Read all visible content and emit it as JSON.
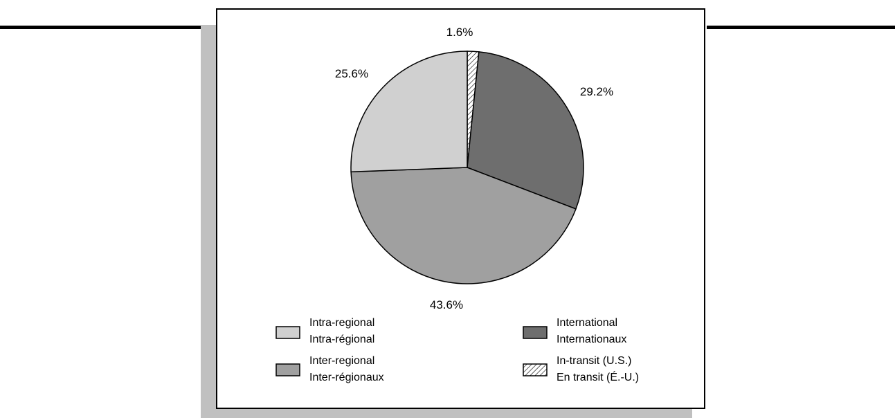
{
  "chart_data": {
    "type": "pie",
    "title": "",
    "slices": [
      {
        "value": 1.6,
        "label": "1.6%",
        "legend_en": "In-transit (U.S.)",
        "legend_fr": "En transit (É.-U.)",
        "color": "#ffffff",
        "pattern": "hatch"
      },
      {
        "value": 29.2,
        "label": "29.2%",
        "legend_en": "International",
        "legend_fr": "Internationaux",
        "color": "#6e6e6e",
        "pattern": "solid"
      },
      {
        "value": 43.6,
        "label": "43.6%",
        "legend_en": "Inter-regional",
        "legend_fr": "Inter-régionaux",
        "color": "#a0a0a0",
        "pattern": "solid"
      },
      {
        "value": 25.6,
        "label": "25.6%",
        "legend_en": "Intra-regional",
        "legend_fr": "Intra-régional",
        "color": "#d0d0d0",
        "pattern": "solid"
      }
    ],
    "legend_placement": "bottom",
    "legend_order": [
      3,
      1,
      2,
      0
    ]
  }
}
